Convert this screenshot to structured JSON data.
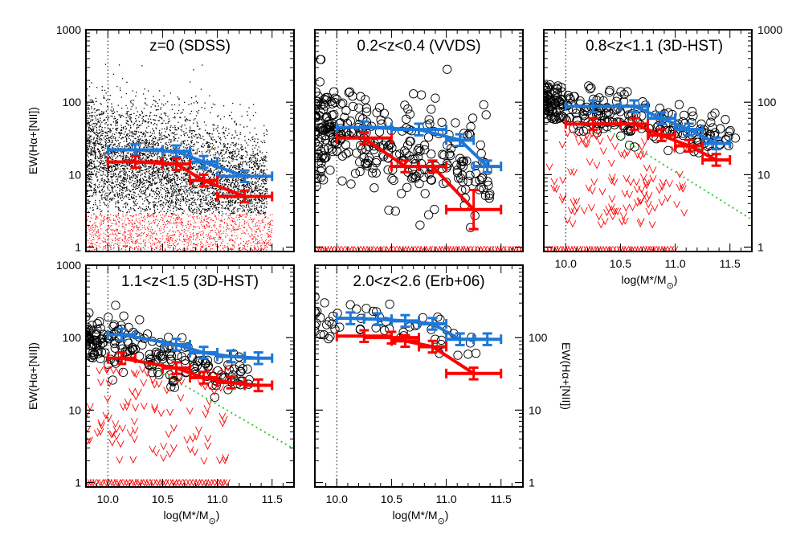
{
  "figure": {
    "shared": {
      "xlabel": "log(M*/M",
      "ylabel": "EW(Hα+[NII])",
      "xticks": [
        "10.0",
        "10.5",
        "11.0",
        "11.5"
      ],
      "yticks": [
        "1",
        "10",
        "100",
        "1000"
      ],
      "xlim": [
        9.8,
        11.7
      ],
      "ylim": [
        0.87,
        1000
      ],
      "yscale": "log",
      "mass_limit_line_x": 10.0,
      "colors": {
        "red": "#ff0000",
        "blue": "#1e78d8",
        "points": "#000000",
        "upper_limits": "#ff0000",
        "trend_line": "#33cc33"
      }
    }
  },
  "chart_data": [
    {
      "type": "scatter",
      "title": "z=0 (SDSS)",
      "xlabel": "",
      "ylabel": "EW(Hα+[NII])",
      "xlim": [
        9.8,
        11.7
      ],
      "ylim": [
        0.87,
        1000
      ],
      "yscale": "log",
      "scatter_style": "dense-dots",
      "series": [
        {
          "color": "blue",
          "x": [
            10.0,
            10.25,
            10.5,
            10.75,
            11.0,
            11.25,
            11.5
          ],
          "y": [
            22,
            22,
            21,
            17,
            14,
            10,
            10
          ]
        },
        {
          "color": "red",
          "x": [
            10.0,
            10.25,
            10.5,
            10.75,
            11.0,
            11.25,
            11.5
          ],
          "y": [
            15,
            15,
            14,
            9,
            8,
            5,
            5
          ]
        }
      ],
      "binned_blue": {
        "xlo": [
          10.0,
          10.5,
          10.75,
          11.0
        ],
        "xhi": [
          10.5,
          10.75,
          11.0,
          11.5
        ],
        "y": [
          22,
          21,
          15,
          9.5
        ]
      },
      "binned_red": {
        "xlo": [
          10.0,
          10.5,
          10.75,
          11.0
        ],
        "xhi": [
          10.5,
          10.75,
          11.0,
          11.5
        ],
        "y": [
          15,
          14,
          8.3,
          5
        ]
      }
    },
    {
      "type": "scatter",
      "title": "0.2<z<0.4 (VVDS)",
      "xlim": [
        9.8,
        11.7
      ],
      "ylim": [
        0.87,
        1000
      ],
      "yscale": "log",
      "binned_blue": {
        "xlo": [
          10.0,
          10.5,
          11.0,
          11.25
        ],
        "xhi": [
          10.5,
          11.0,
          11.25,
          11.5
        ],
        "y": [
          45,
          42,
          30,
          13
        ]
      },
      "binned_red": {
        "xlo": [
          10.0,
          10.5,
          10.75,
          11.0
        ],
        "xhi": [
          10.5,
          10.75,
          11.0,
          11.5
        ],
        "y": [
          32,
          13,
          13,
          3.3
        ]
      }
    },
    {
      "type": "scatter",
      "title": "0.8<z<1.1 (3D-HST)",
      "xlim": [
        9.8,
        11.7
      ],
      "ylim": [
        0.87,
        1000
      ],
      "yscale": "log",
      "binned_blue": {
        "xlo": [
          10.0,
          10.5,
          10.75,
          11.0,
          11.25
        ],
        "xhi": [
          10.5,
          10.75,
          11.0,
          11.25,
          11.5
        ],
        "y": [
          88,
          88,
          60,
          42,
          27
        ]
      },
      "binned_red": {
        "xlo": [
          10.0,
          10.5,
          10.75,
          11.0,
          11.25
        ],
        "xhi": [
          10.5,
          10.75,
          11.0,
          11.25,
          11.5
        ],
        "y": [
          50,
          50,
          35,
          25,
          16
        ]
      },
      "trend_line": {
        "x": [
          10.4,
          11.7
        ],
        "y": [
          40,
          2.4
        ]
      }
    },
    {
      "type": "scatter",
      "title": "1.1<z<1.5 (3D-HST)",
      "xlim": [
        9.8,
        11.7
      ],
      "ylim": [
        0.87,
        1000
      ],
      "yscale": "log",
      "binned_blue": {
        "xlo": [
          10.0,
          10.5,
          10.75,
          11.0,
          11.25
        ],
        "xhi": [
          10.25,
          10.75,
          11.0,
          11.25,
          11.5
        ],
        "y": [
          110,
          80,
          62,
          55,
          52
        ]
      },
      "binned_red": {
        "xlo": [
          10.0,
          10.5,
          10.75,
          11.0,
          11.25
        ],
        "xhi": [
          10.25,
          10.75,
          11.0,
          11.25,
          11.5
        ],
        "y": [
          52,
          38,
          28,
          24,
          22
        ]
      },
      "trend_line": {
        "x": [
          10.4,
          11.7
        ],
        "y": [
          40,
          2.9
        ]
      }
    },
    {
      "type": "scatter",
      "title": "2.0<z<2.6 (Erb+06)",
      "xlim": [
        9.8,
        11.7
      ],
      "ylim": [
        0.87,
        1000
      ],
      "yscale": "log",
      "binned_blue": {
        "xlo": [
          10.0,
          10.25,
          10.5,
          10.75,
          11.0,
          11.25
        ],
        "xhi": [
          10.25,
          10.5,
          10.75,
          11.0,
          11.25,
          11.5
        ],
        "y": [
          185,
          180,
          170,
          155,
          95,
          95
        ]
      },
      "binned_red": {
        "xlo": [
          10.0,
          10.25,
          10.5,
          10.75,
          11.0
        ],
        "xhi": [
          10.5,
          10.75,
          10.75,
          11.0,
          11.5
        ],
        "y": [
          105,
          100,
          90,
          75,
          32
        ]
      }
    }
  ]
}
